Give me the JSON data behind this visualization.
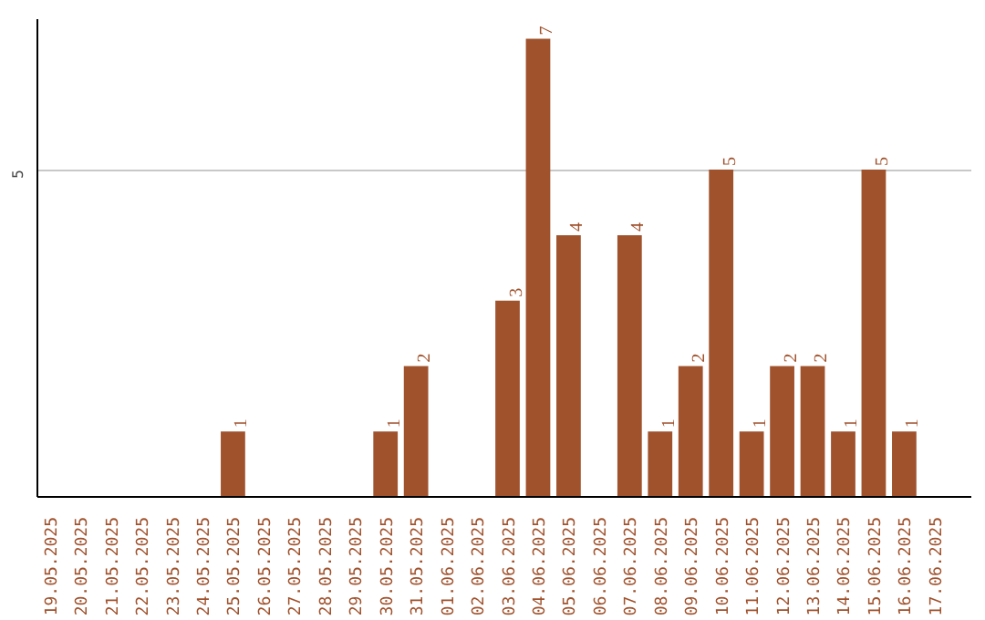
{
  "chart_data": {
    "type": "bar",
    "categories": [
      "19.05.2025",
      "20.05.2025",
      "21.05.2025",
      "22.05.2025",
      "23.05.2025",
      "24.05.2025",
      "25.05.2025",
      "26.05.2025",
      "27.05.2025",
      "28.05.2025",
      "29.05.2025",
      "30.05.2025",
      "31.05.2025",
      "01.06.2025",
      "02.06.2025",
      "03.06.2025",
      "04.06.2025",
      "05.06.2025",
      "06.06.2025",
      "07.06.2025",
      "08.06.2025",
      "09.06.2025",
      "10.06.2025",
      "11.06.2025",
      "12.06.2025",
      "13.06.2025",
      "14.06.2025",
      "15.06.2025",
      "16.06.2025",
      "17.06.2025"
    ],
    "values": [
      0,
      0,
      0,
      0,
      0,
      0,
      1,
      0,
      0,
      0,
      0,
      1,
      2,
      0,
      0,
      3,
      7,
      4,
      0,
      4,
      1,
      2,
      5,
      1,
      2,
      2,
      1,
      5,
      1,
      0
    ],
    "value_labels": [
      null,
      null,
      null,
      null,
      null,
      null,
      "1",
      null,
      null,
      null,
      null,
      "1",
      "2",
      null,
      null,
      "3",
      "7",
      "4",
      null,
      "4",
      "1",
      "2",
      "5",
      "1",
      "2",
      "2",
      "1",
      "5",
      "1",
      null
    ],
    "color": "#a0522d",
    "ylim": [
      0,
      7.3
    ],
    "yticks": [
      5
    ],
    "grid": "y"
  }
}
